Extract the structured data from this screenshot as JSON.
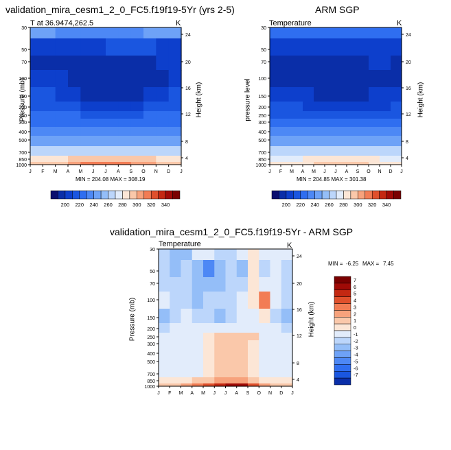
{
  "months": [
    "J",
    "F",
    "M",
    "A",
    "M",
    "J",
    "J",
    "A",
    "S",
    "O",
    "N",
    "D",
    "J"
  ],
  "pressure_ticks": [
    "30",
    "50",
    "70",
    "100",
    "150",
    "200",
    "250",
    "300",
    "400",
    "500",
    "700",
    "850",
    "1000"
  ],
  "height_ticks": [
    "24",
    "20",
    "16",
    "12",
    "8",
    "4"
  ],
  "chart_data": [
    {
      "type": "heatmap",
      "title": "validation_mira_cesm1_2_0_FC5.f19f19-5Yr (yrs 2-5)",
      "subtitle_left": "T at 36.9474,262.5",
      "units": "K",
      "ylabel": "Pressure (mb)",
      "ylabel_right": "Height (km)",
      "stats": "MIN = 204.08 MAX = 308.19",
      "colorbar_ticks": [
        "200",
        "220",
        "240",
        "260",
        "280",
        "300",
        "320",
        "340"
      ],
      "colors": [
        "#0b0f6e",
        "#0a2ea8",
        "#0d3fcc",
        "#1a56e0",
        "#2f6ef0",
        "#4d88f5",
        "#6ea2f7",
        "#94bef8",
        "#bcd6fb",
        "#e2ecfb",
        "#fce6d6",
        "#fac8aa",
        "#f7a27c",
        "#f27c54",
        "#e0502c",
        "#c42812",
        "#a00a06",
        "#7a0000"
      ],
      "z": [
        [
          6,
          6,
          5,
          5,
          5,
          5,
          5,
          5,
          5,
          6,
          6,
          6
        ],
        [
          2,
          2,
          2,
          2,
          2,
          2,
          3,
          3,
          3,
          3,
          2,
          2
        ],
        [
          1,
          1,
          1,
          1,
          1,
          1,
          1,
          1,
          1,
          1,
          2,
          2
        ],
        [
          2,
          2,
          2,
          1,
          1,
          1,
          1,
          1,
          1,
          1,
          1,
          2
        ],
        [
          3,
          3,
          2,
          2,
          1,
          1,
          1,
          1,
          1,
          2,
          2,
          3
        ],
        [
          3,
          3,
          3,
          3,
          2,
          2,
          2,
          2,
          2,
          3,
          3,
          3
        ],
        [
          4,
          4,
          4,
          4,
          3,
          3,
          3,
          3,
          3,
          4,
          4,
          4
        ],
        [
          4,
          4,
          4,
          4,
          4,
          4,
          4,
          4,
          4,
          4,
          4,
          4
        ],
        [
          5,
          5,
          5,
          5,
          5,
          5,
          5,
          5,
          5,
          5,
          5,
          5
        ],
        [
          6,
          6,
          6,
          6,
          6,
          6,
          6,
          6,
          6,
          6,
          6,
          6
        ],
        [
          8,
          8,
          8,
          8,
          8,
          8,
          8,
          8,
          8,
          8,
          8,
          8
        ],
        [
          10,
          10,
          10,
          11,
          11,
          11,
          11,
          11,
          11,
          11,
          10,
          10
        ],
        [
          11,
          11,
          11,
          12,
          13,
          13,
          13,
          13,
          12,
          12,
          11,
          11
        ]
      ]
    },
    {
      "type": "heatmap",
      "title": "ARM SGP",
      "subtitle_left": "Temperature",
      "units": "K",
      "ylabel": "pressure level",
      "ylabel_right": "Height (km)",
      "stats": "MIN = 204.85 MAX = 301.38",
      "colorbar_ticks": [
        "200",
        "220",
        "240",
        "260",
        "280",
        "300",
        "320",
        "340"
      ],
      "colors": [
        "#0b0f6e",
        "#0a2ea8",
        "#0d3fcc",
        "#1a56e0",
        "#2f6ef0",
        "#4d88f5",
        "#6ea2f7",
        "#94bef8",
        "#bcd6fb",
        "#e2ecfb",
        "#fce6d6",
        "#fac8aa",
        "#f7a27c",
        "#f27c54",
        "#e0502c",
        "#c42812",
        "#a00a06",
        "#7a0000"
      ],
      "z": [
        [
          4,
          4,
          4,
          4,
          4,
          4,
          4,
          4,
          4,
          4,
          4,
          4
        ],
        [
          2,
          2,
          2,
          2,
          2,
          2,
          2,
          2,
          2,
          2,
          2,
          2
        ],
        [
          1,
          1,
          1,
          1,
          1,
          1,
          1,
          1,
          1,
          2,
          2,
          1
        ],
        [
          1,
          1,
          1,
          1,
          1,
          1,
          1,
          1,
          1,
          1,
          1,
          1
        ],
        [
          2,
          2,
          2,
          2,
          1,
          1,
          1,
          1,
          1,
          2,
          2,
          2
        ],
        [
          3,
          3,
          3,
          2,
          2,
          2,
          2,
          2,
          2,
          2,
          2,
          3
        ],
        [
          3,
          3,
          3,
          3,
          3,
          3,
          3,
          3,
          3,
          3,
          3,
          3
        ],
        [
          4,
          4,
          4,
          4,
          4,
          4,
          4,
          4,
          4,
          4,
          4,
          4
        ],
        [
          5,
          5,
          5,
          5,
          5,
          5,
          5,
          5,
          5,
          5,
          5,
          5
        ],
        [
          6,
          6,
          6,
          6,
          6,
          6,
          6,
          6,
          6,
          6,
          6,
          6
        ],
        [
          8,
          8,
          8,
          8,
          8,
          8,
          8,
          8,
          8,
          8,
          8,
          8
        ],
        [
          9,
          9,
          9,
          10,
          10,
          10,
          10,
          10,
          10,
          10,
          9,
          9
        ],
        [
          10,
          10,
          10,
          10,
          11,
          11,
          11,
          11,
          11,
          10,
          10,
          10
        ]
      ]
    },
    {
      "type": "heatmap",
      "title": "validation_mira_cesm1_2_0_FC5.f19f19-5Yr - ARM SGP",
      "subtitle_left": "Temperature",
      "units": "K",
      "ylabel": "Pressure (mb)",
      "ylabel_right": "Height (km)",
      "stats_min_label": "MIN =",
      "stats_min": "-6.25",
      "stats_max_label": "MAX =",
      "stats_max": "7.45",
      "colorbar_ticks": [
        "7",
        "6",
        "5",
        "4",
        "3",
        "2",
        "1",
        "0",
        "-1",
        "-2",
        "-3",
        "-4",
        "-5",
        "-6",
        "-7"
      ],
      "colors": [
        "#7a0000",
        "#a00a06",
        "#c42812",
        "#e0502c",
        "#f27c54",
        "#f7a27c",
        "#fac8aa",
        "#fce6d6",
        "#e2ecfb",
        "#bcd6fb",
        "#94bef8",
        "#6ea2f7",
        "#4d88f5",
        "#2f6ef0",
        "#1a56e0",
        "#0a2ea8"
      ],
      "z": [
        [
          -2,
          -3,
          -3,
          -1,
          -1,
          -2,
          -2,
          -1,
          0,
          -1,
          -1,
          -1
        ],
        [
          -2,
          -3,
          -2,
          -3,
          -5,
          -3,
          -2,
          -3,
          0,
          -2,
          -1,
          -2
        ],
        [
          -2,
          -2,
          -2,
          -3,
          -3,
          -3,
          -2,
          -2,
          0,
          -1,
          -1,
          -2
        ],
        [
          -1,
          -2,
          -2,
          -3,
          -2,
          -2,
          -2,
          -1,
          0,
          3,
          -1,
          -2
        ],
        [
          -3,
          -2,
          -1,
          -2,
          -2,
          -3,
          -2,
          -1,
          -1,
          0,
          -2,
          -3
        ],
        [
          -2,
          -1,
          -1,
          -1,
          -1,
          -1,
          -1,
          -1,
          -1,
          -1,
          -1,
          -2
        ],
        [
          -1,
          -1,
          -1,
          -1,
          0,
          1,
          1,
          1,
          1,
          -1,
          -1,
          -1
        ],
        [
          -1,
          -1,
          -1,
          -1,
          0,
          1,
          1,
          1,
          0,
          -1,
          -1,
          -1
        ],
        [
          -1,
          -1,
          -1,
          -1,
          0,
          1,
          1,
          1,
          0,
          -1,
          -1,
          -1
        ],
        [
          -1,
          -1,
          -1,
          -1,
          0,
          1,
          1,
          1,
          0,
          -1,
          -1,
          -1
        ],
        [
          -1,
          -1,
          -1,
          -1,
          0,
          1,
          1,
          1,
          0,
          -1,
          -1,
          -1
        ],
        [
          0,
          0,
          0,
          1,
          1,
          2,
          2,
          2,
          1,
          0,
          0,
          0
        ],
        [
          1,
          1,
          2,
          3,
          4,
          5,
          6,
          6,
          4,
          2,
          1,
          1
        ]
      ]
    }
  ]
}
